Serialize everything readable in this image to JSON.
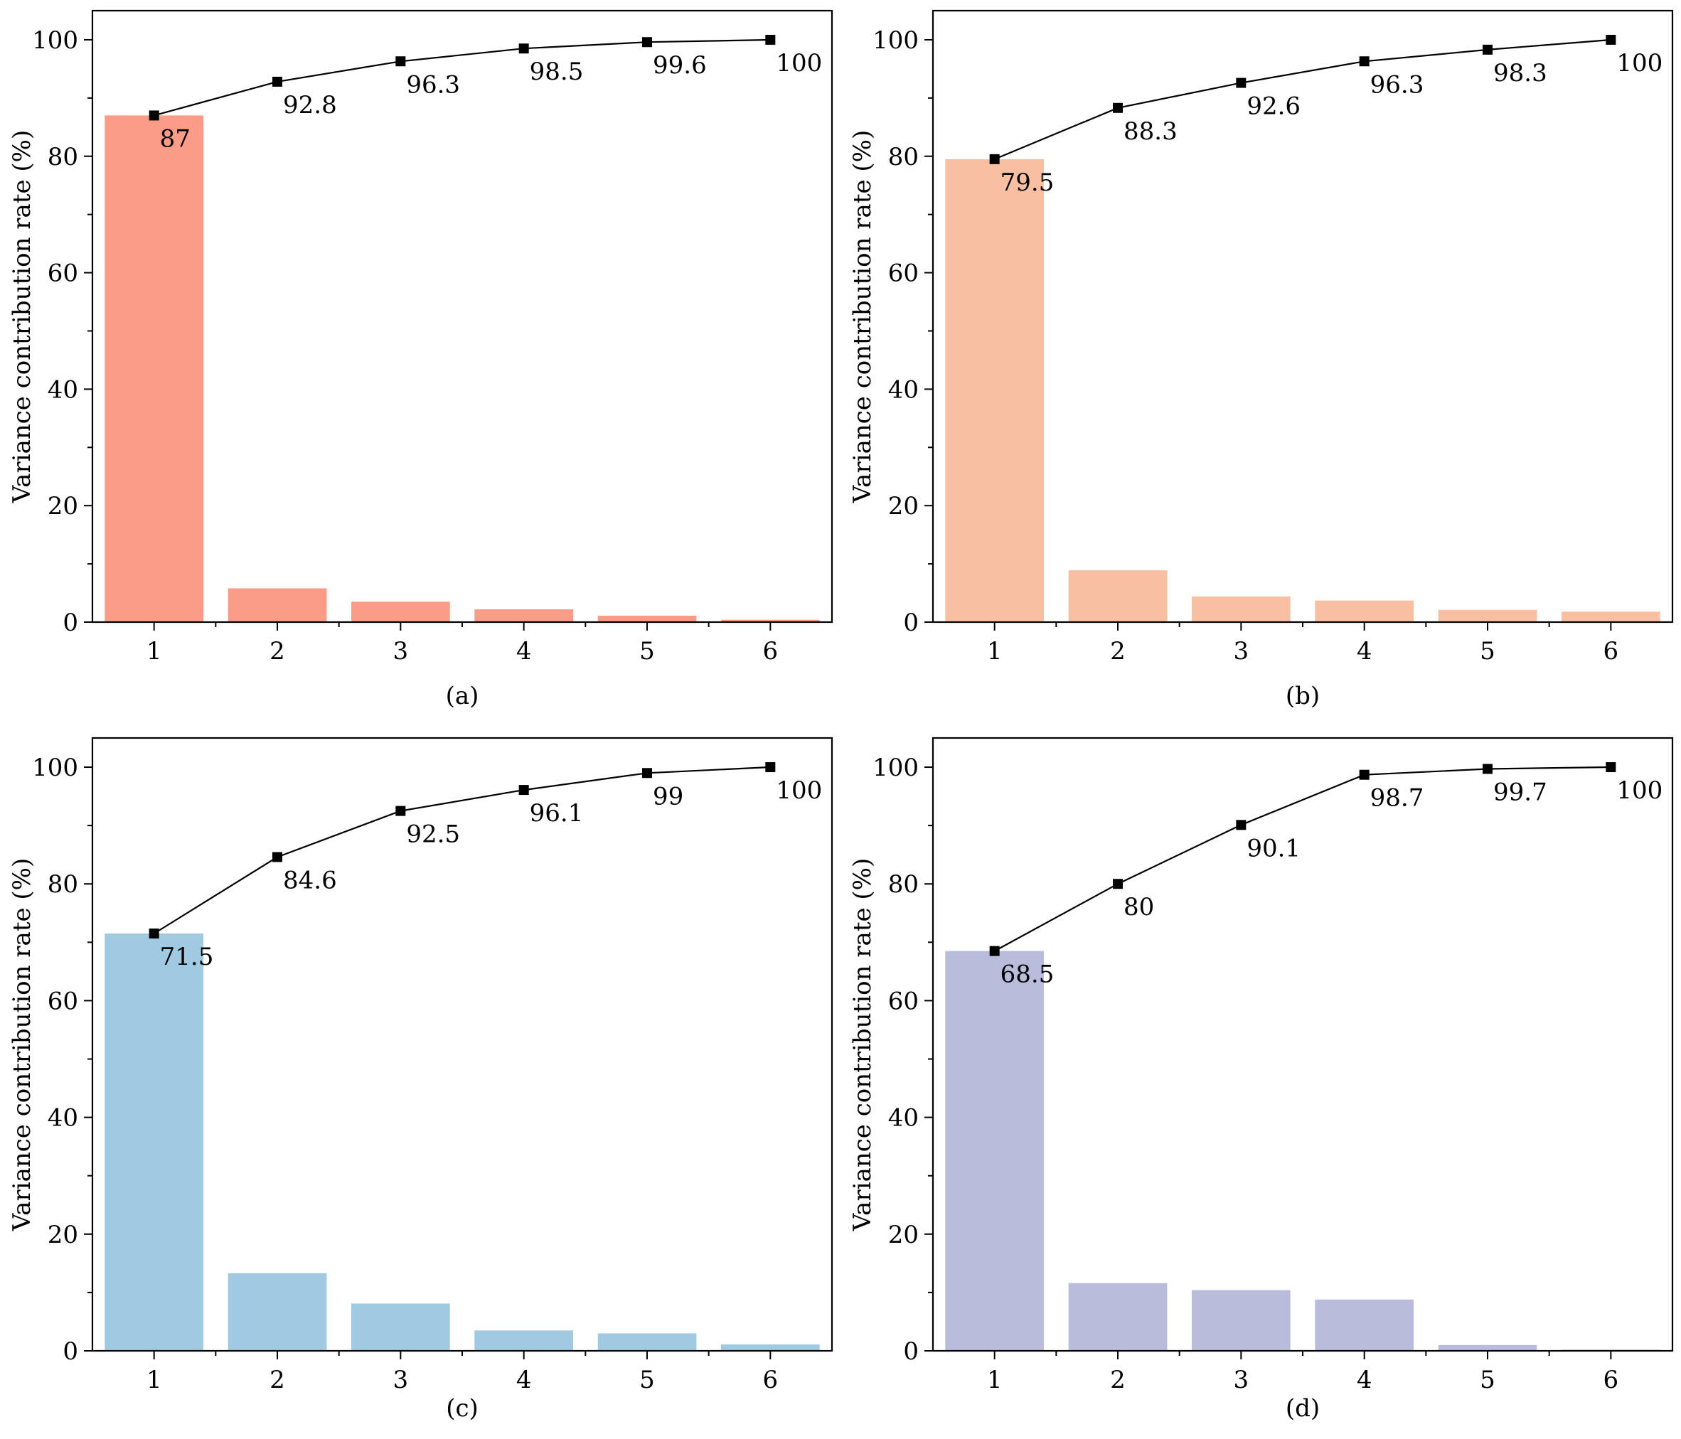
{
  "chart_data": [
    {
      "type": "bar",
      "panel_label": "(a)",
      "categories": [
        "1",
        "2",
        "3",
        "4",
        "5",
        "6"
      ],
      "series": [
        {
          "name": "variance",
          "type": "bar",
          "values": [
            87,
            5.8,
            3.5,
            2.2,
            1.1,
            0.4
          ]
        },
        {
          "name": "cumulative",
          "type": "line",
          "values": [
            87,
            92.8,
            96.3,
            98.5,
            99.6,
            100
          ],
          "labels": [
            "87",
            "92.8",
            "96.3",
            "98.5",
            "99.6",
            "100"
          ]
        }
      ],
      "bar_color": "#fa9c87",
      "ylabel": "Variance contribution rate (%)",
      "xlabel": "",
      "ylim": [
        0,
        105
      ],
      "yticks": [
        "0",
        "20",
        "40",
        "60",
        "80",
        "100"
      ]
    },
    {
      "type": "bar",
      "panel_label": "(b)",
      "categories": [
        "1",
        "2",
        "3",
        "4",
        "5",
        "6"
      ],
      "series": [
        {
          "name": "variance",
          "type": "bar",
          "values": [
            79.5,
            8.9,
            4.4,
            3.7,
            2.1,
            1.8
          ]
        },
        {
          "name": "cumulative",
          "type": "line",
          "values": [
            79.5,
            88.3,
            92.6,
            96.3,
            98.3,
            100
          ],
          "labels": [
            "79.5",
            "88.3",
            "92.6",
            "96.3",
            "98.3",
            "100"
          ]
        }
      ],
      "bar_color": "#f9bfa3",
      "ylabel": "Variance contribution rate (%)",
      "xlabel": "",
      "ylim": [
        0,
        105
      ],
      "yticks": [
        "0",
        "20",
        "40",
        "60",
        "80",
        "100"
      ]
    },
    {
      "type": "bar",
      "panel_label": "(c)",
      "categories": [
        "1",
        "2",
        "3",
        "4",
        "5",
        "6"
      ],
      "series": [
        {
          "name": "variance",
          "type": "bar",
          "values": [
            71.5,
            13.3,
            8.1,
            3.5,
            3.0,
            1.1
          ]
        },
        {
          "name": "cumulative",
          "type": "line",
          "values": [
            71.5,
            84.6,
            92.5,
            96.1,
            99,
            100
          ],
          "labels": [
            "71.5",
            "84.6",
            "92.5",
            "96.1",
            "99",
            "100"
          ]
        }
      ],
      "bar_color": "#a0cae1",
      "ylabel": "Variance contribution rate (%)",
      "xlabel": "",
      "ylim": [
        0,
        105
      ],
      "yticks": [
        "0",
        "20",
        "40",
        "60",
        "80",
        "100"
      ]
    },
    {
      "type": "bar",
      "panel_label": "(d)",
      "categories": [
        "1",
        "2",
        "3",
        "4",
        "5",
        "6"
      ],
      "series": [
        {
          "name": "variance",
          "type": "bar",
          "values": [
            68.5,
            11.6,
            10.4,
            8.8,
            1.0,
            0.2
          ]
        },
        {
          "name": "cumulative",
          "type": "line",
          "values": [
            68.5,
            80,
            90.1,
            98.7,
            99.7,
            100
          ],
          "labels": [
            "68.5",
            "80",
            "90.1",
            "98.7",
            "99.7",
            "100"
          ]
        }
      ],
      "bar_color": "#babcdc",
      "ylabel": "Variance contribution rate (%)",
      "xlabel": "",
      "ylim": [
        0,
        105
      ],
      "yticks": [
        "0",
        "20",
        "40",
        "60",
        "80",
        "100"
      ]
    }
  ]
}
